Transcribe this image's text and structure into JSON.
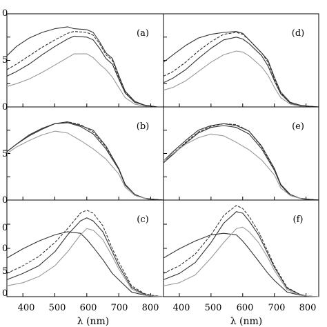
{
  "figure": {
    "xlabel": "λ (nm)",
    "x_ticks": [
      400,
      500,
      600,
      700,
      800
    ],
    "y_tick_label_fragments": [
      [
        "0",
        "5",
        "0"
      ],
      [
        "5",
        "0"
      ],
      [
        "0",
        "0",
        "5",
        "0"
      ]
    ]
  },
  "chart_data": [
    {
      "type": "line",
      "label": "(a)",
      "xlim": [
        350,
        840
      ],
      "ylim": [
        0,
        1
      ],
      "grid": false,
      "series": [
        {
          "color": "#333333",
          "dash": "solid",
          "x": [
            350,
            380,
            420,
            460,
            500,
            540,
            560,
            600,
            620,
            640,
            660,
            680,
            700,
            720,
            750,
            780,
            800,
            820,
            840
          ],
          "y": [
            0.55,
            0.65,
            0.74,
            0.8,
            0.84,
            0.86,
            0.84,
            0.83,
            0.8,
            0.7,
            0.58,
            0.52,
            0.34,
            0.17,
            0.06,
            0.02,
            0.01,
            0.0,
            0.0
          ]
        },
        {
          "color": "#333333",
          "dash": "dashed",
          "x": [
            350,
            380,
            420,
            460,
            500,
            540,
            560,
            600,
            620,
            640,
            660,
            680,
            700,
            720,
            750,
            780,
            800,
            820,
            840
          ],
          "y": [
            0.4,
            0.46,
            0.55,
            0.64,
            0.72,
            0.79,
            0.81,
            0.8,
            0.77,
            0.68,
            0.56,
            0.5,
            0.32,
            0.16,
            0.05,
            0.02,
            0.01,
            0.0,
            0.0
          ]
        },
        {
          "color": "#333333",
          "dash": "solid",
          "x": [
            350,
            380,
            420,
            460,
            500,
            540,
            560,
            600,
            620,
            640,
            660,
            680,
            700,
            720,
            750,
            780,
            800,
            820,
            840
          ],
          "y": [
            0.33,
            0.38,
            0.46,
            0.56,
            0.65,
            0.73,
            0.76,
            0.75,
            0.72,
            0.63,
            0.52,
            0.46,
            0.3,
            0.15,
            0.05,
            0.02,
            0.01,
            0.0,
            0.0
          ]
        },
        {
          "color": "#999999",
          "dash": "solid",
          "x": [
            350,
            380,
            420,
            460,
            500,
            540,
            560,
            600,
            620,
            640,
            660,
            680,
            700,
            720,
            750,
            780,
            800,
            820,
            840
          ],
          "y": [
            0.22,
            0.25,
            0.3,
            0.37,
            0.45,
            0.53,
            0.57,
            0.57,
            0.53,
            0.46,
            0.4,
            0.32,
            0.21,
            0.1,
            0.03,
            0.01,
            0.0,
            0.0,
            0.0
          ]
        }
      ]
    },
    {
      "type": "line",
      "label": "(b)",
      "xlim": [
        350,
        840
      ],
      "ylim": [
        0,
        1
      ],
      "grid": false,
      "series": [
        {
          "color": "#333333",
          "dash": "solid",
          "x": [
            350,
            380,
            420,
            460,
            500,
            540,
            580,
            620,
            660,
            700,
            720,
            750,
            780,
            800,
            840
          ],
          "y": [
            0.52,
            0.6,
            0.7,
            0.77,
            0.82,
            0.84,
            0.8,
            0.75,
            0.58,
            0.34,
            0.17,
            0.06,
            0.02,
            0.01,
            0.0
          ]
        },
        {
          "color": "#333333",
          "dash": "dashed",
          "x": [
            350,
            380,
            420,
            460,
            500,
            540,
            580,
            620,
            660,
            700,
            720,
            750,
            780,
            800,
            840
          ],
          "y": [
            0.52,
            0.6,
            0.7,
            0.77,
            0.82,
            0.84,
            0.81,
            0.73,
            0.57,
            0.34,
            0.17,
            0.06,
            0.02,
            0.01,
            0.0
          ]
        },
        {
          "color": "#333333",
          "dash": "solid",
          "x": [
            350,
            380,
            420,
            460,
            500,
            540,
            580,
            620,
            660,
            700,
            720,
            750,
            780,
            800,
            840
          ],
          "y": [
            0.52,
            0.6,
            0.69,
            0.76,
            0.82,
            0.83,
            0.79,
            0.71,
            0.55,
            0.33,
            0.16,
            0.06,
            0.02,
            0.01,
            0.0
          ]
        },
        {
          "color": "#999999",
          "dash": "solid",
          "x": [
            350,
            380,
            420,
            460,
            500,
            540,
            580,
            620,
            660,
            700,
            720,
            750,
            780,
            800,
            840
          ],
          "y": [
            0.5,
            0.57,
            0.64,
            0.7,
            0.74,
            0.72,
            0.64,
            0.55,
            0.44,
            0.28,
            0.14,
            0.05,
            0.02,
            0.0,
            0.0
          ]
        }
      ]
    },
    {
      "type": "line",
      "label": "(c)",
      "xlim": [
        350,
        840
      ],
      "ylim": [
        0,
        1.25
      ],
      "grid": false,
      "series": [
        {
          "color": "#333333",
          "dash": "solid",
          "x": [
            350,
            400,
            450,
            500,
            540,
            580,
            600,
            620,
            650,
            680,
            700,
            740,
            780,
            800,
            840
          ],
          "y": [
            0.5,
            0.62,
            0.72,
            0.8,
            0.84,
            0.82,
            0.74,
            0.64,
            0.48,
            0.3,
            0.22,
            0.06,
            0.02,
            0.01,
            0.0
          ]
        },
        {
          "color": "#333333",
          "dash": "dashed",
          "x": [
            350,
            400,
            450,
            500,
            540,
            580,
            600,
            620,
            650,
            680,
            700,
            740,
            780,
            800,
            840
          ],
          "y": [
            0.3,
            0.4,
            0.52,
            0.7,
            0.88,
            1.08,
            1.12,
            1.08,
            0.92,
            0.62,
            0.45,
            0.14,
            0.04,
            0.02,
            0.0
          ]
        },
        {
          "color": "#333333",
          "dash": "solid",
          "x": [
            350,
            400,
            450,
            500,
            540,
            580,
            600,
            620,
            650,
            680,
            700,
            740,
            780,
            800,
            840
          ],
          "y": [
            0.22,
            0.3,
            0.4,
            0.58,
            0.8,
            0.98,
            1.02,
            0.98,
            0.84,
            0.58,
            0.4,
            0.12,
            0.03,
            0.01,
            0.0
          ]
        },
        {
          "color": "#999999",
          "dash": "solid",
          "x": [
            350,
            400,
            450,
            500,
            540,
            580,
            600,
            620,
            650,
            680,
            700,
            740,
            780,
            800,
            840
          ],
          "y": [
            0.14,
            0.18,
            0.26,
            0.4,
            0.58,
            0.8,
            0.88,
            0.86,
            0.74,
            0.52,
            0.36,
            0.1,
            0.02,
            0.01,
            0.0
          ]
        }
      ]
    },
    {
      "type": "line",
      "label": "(d)",
      "xlim": [
        350,
        840
      ],
      "ylim": [
        0,
        1
      ],
      "grid": false,
      "series": [
        {
          "color": "#333333",
          "dash": "solid",
          "x": [
            350,
            380,
            420,
            460,
            500,
            540,
            580,
            600,
            620,
            660,
            680,
            700,
            720,
            750,
            780,
            800,
            840
          ],
          "y": [
            0.48,
            0.56,
            0.66,
            0.74,
            0.78,
            0.8,
            0.81,
            0.79,
            0.72,
            0.58,
            0.5,
            0.32,
            0.16,
            0.05,
            0.02,
            0.01,
            0.0
          ]
        },
        {
          "color": "#333333",
          "dash": "dashed",
          "x": [
            350,
            380,
            420,
            460,
            500,
            540,
            580,
            600,
            620,
            660,
            680,
            700,
            720,
            750,
            780,
            800,
            840
          ],
          "y": [
            0.33,
            0.38,
            0.48,
            0.6,
            0.7,
            0.78,
            0.8,
            0.78,
            0.72,
            0.58,
            0.48,
            0.3,
            0.15,
            0.05,
            0.02,
            0.01,
            0.0
          ]
        },
        {
          "color": "#333333",
          "dash": "solid",
          "x": [
            350,
            380,
            420,
            460,
            500,
            540,
            580,
            600,
            620,
            660,
            680,
            700,
            720,
            750,
            780,
            800,
            840
          ],
          "y": [
            0.26,
            0.31,
            0.4,
            0.52,
            0.63,
            0.72,
            0.75,
            0.73,
            0.68,
            0.55,
            0.44,
            0.28,
            0.14,
            0.04,
            0.01,
            0.0,
            0.0
          ]
        },
        {
          "color": "#999999",
          "dash": "solid",
          "x": [
            350,
            380,
            420,
            460,
            500,
            540,
            580,
            600,
            620,
            660,
            680,
            700,
            720,
            750,
            780,
            800,
            840
          ],
          "y": [
            0.18,
            0.21,
            0.28,
            0.38,
            0.48,
            0.56,
            0.6,
            0.59,
            0.55,
            0.43,
            0.34,
            0.21,
            0.1,
            0.03,
            0.01,
            0.0,
            0.0
          ]
        }
      ]
    },
    {
      "type": "line",
      "label": "(e)",
      "xlim": [
        350,
        840
      ],
      "ylim": [
        0,
        1
      ],
      "grid": false,
      "series": [
        {
          "color": "#333333",
          "dash": "solid",
          "x": [
            350,
            380,
            420,
            460,
            500,
            540,
            580,
            620,
            660,
            700,
            720,
            750,
            780,
            800,
            840
          ],
          "y": [
            0.42,
            0.52,
            0.64,
            0.75,
            0.8,
            0.82,
            0.8,
            0.74,
            0.58,
            0.34,
            0.17,
            0.06,
            0.02,
            0.01,
            0.0
          ]
        },
        {
          "color": "#333333",
          "dash": "dashed",
          "x": [
            350,
            380,
            420,
            460,
            500,
            540,
            580,
            620,
            660,
            700,
            720,
            750,
            780,
            800,
            840
          ],
          "y": [
            0.4,
            0.5,
            0.62,
            0.73,
            0.79,
            0.82,
            0.81,
            0.74,
            0.57,
            0.33,
            0.16,
            0.06,
            0.02,
            0.01,
            0.0
          ]
        },
        {
          "color": "#333333",
          "dash": "solid",
          "x": [
            350,
            380,
            420,
            460,
            500,
            540,
            580,
            620,
            660,
            700,
            720,
            750,
            780,
            800,
            840
          ],
          "y": [
            0.4,
            0.49,
            0.61,
            0.72,
            0.78,
            0.8,
            0.78,
            0.71,
            0.55,
            0.32,
            0.16,
            0.05,
            0.02,
            0.01,
            0.0
          ]
        },
        {
          "color": "#999999",
          "dash": "solid",
          "x": [
            350,
            380,
            420,
            460,
            500,
            540,
            580,
            620,
            660,
            700,
            720,
            750,
            780,
            800,
            840
          ],
          "y": [
            0.42,
            0.5,
            0.6,
            0.67,
            0.71,
            0.69,
            0.62,
            0.54,
            0.43,
            0.27,
            0.13,
            0.05,
            0.02,
            0.0,
            0.0
          ]
        }
      ]
    },
    {
      "type": "line",
      "label": "(f)",
      "xlim": [
        350,
        840
      ],
      "ylim": [
        0,
        1.25
      ],
      "grid": false,
      "series": [
        {
          "color": "#333333",
          "dash": "solid",
          "x": [
            350,
            400,
            450,
            500,
            540,
            580,
            600,
            620,
            650,
            680,
            700,
            740,
            780,
            800,
            840
          ],
          "y": [
            0.5,
            0.62,
            0.72,
            0.8,
            0.82,
            0.8,
            0.72,
            0.62,
            0.46,
            0.3,
            0.21,
            0.06,
            0.02,
            0.01,
            0.0
          ]
        },
        {
          "color": "#333333",
          "dash": "dashed",
          "x": [
            350,
            400,
            450,
            500,
            540,
            580,
            600,
            620,
            650,
            680,
            700,
            740,
            780,
            800,
            840
          ],
          "y": [
            0.3,
            0.4,
            0.55,
            0.8,
            1.05,
            1.18,
            1.14,
            1.04,
            0.84,
            0.58,
            0.4,
            0.12,
            0.03,
            0.01,
            0.0
          ]
        },
        {
          "color": "#333333",
          "dash": "solid",
          "x": [
            350,
            400,
            450,
            500,
            540,
            580,
            600,
            620,
            650,
            680,
            700,
            740,
            780,
            800,
            840
          ],
          "y": [
            0.22,
            0.3,
            0.44,
            0.7,
            0.95,
            1.1,
            1.08,
            0.98,
            0.8,
            0.55,
            0.38,
            0.11,
            0.03,
            0.01,
            0.0
          ]
        },
        {
          "color": "#999999",
          "dash": "solid",
          "x": [
            350,
            400,
            450,
            500,
            540,
            580,
            600,
            620,
            650,
            680,
            700,
            740,
            780,
            800,
            840
          ],
          "y": [
            0.14,
            0.18,
            0.28,
            0.5,
            0.7,
            0.88,
            0.9,
            0.84,
            0.7,
            0.5,
            0.34,
            0.09,
            0.02,
            0.01,
            0.0
          ]
        }
      ]
    }
  ]
}
